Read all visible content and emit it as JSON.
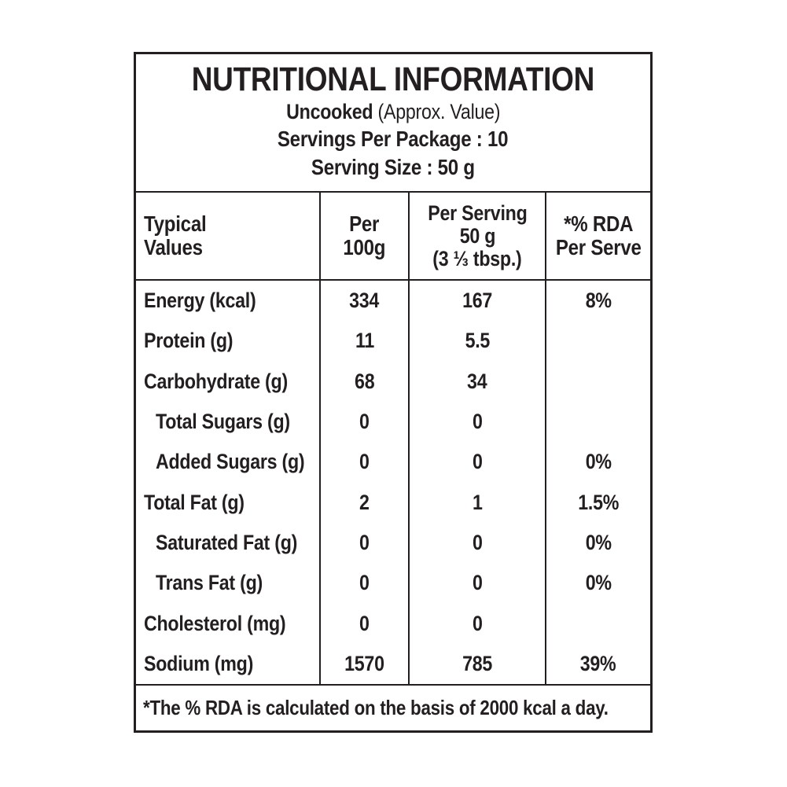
{
  "header": {
    "title": "NUTRITIONAL INFORMATION",
    "subtitle_bold": "Uncooked",
    "subtitle_rest": " (Approx. Value)",
    "servings_line": "Servings Per Package : 10",
    "serving_size_line": "Serving Size : 50 g"
  },
  "table": {
    "columns": {
      "typical_values": {
        "line1": "Typical",
        "line2": "Values"
      },
      "per_100g": {
        "line1": "Per",
        "line2": "100g"
      },
      "per_serving": {
        "line1": "Per Serving",
        "line2": "50 g",
        "line3": "(3 ⅓ tbsp.)"
      },
      "rda": {
        "line1": "*% RDA",
        "line2": "Per Serve"
      }
    },
    "rows": [
      {
        "label": "Energy (kcal)",
        "per100g": "334",
        "per_serving": "167",
        "rda": "8%"
      },
      {
        "label": "Protein (g)",
        "per100g": "11",
        "per_serving": "5.5",
        "rda": ""
      },
      {
        "label": "Carbohydrate (g)",
        "per100g": "68",
        "per_serving": "34",
        "rda": ""
      },
      {
        "label": "Total Sugars (g)",
        "per100g": "0",
        "per_serving": "0",
        "rda": ""
      },
      {
        "label": "Added Sugars (g)",
        "per100g": "0",
        "per_serving": "0",
        "rda": "0%"
      },
      {
        "label": "Total Fat (g)",
        "per100g": "2",
        "per_serving": "1",
        "rda": "1.5%"
      },
      {
        "label": "Saturated Fat (g)",
        "per100g": "0",
        "per_serving": "0",
        "rda": "0%"
      },
      {
        "label": "Trans Fat (g)",
        "per100g": "0",
        "per_serving": "0",
        "rda": "0%"
      },
      {
        "label": "Cholesterol (mg)",
        "per100g": "0",
        "per_serving": "0",
        "rda": ""
      },
      {
        "label": "Sodium (mg)",
        "per100g": "1570",
        "per_serving": "785",
        "rda": "39%"
      }
    ],
    "footnote": "*The % RDA is calculated on the basis of 2000 kcal a day."
  },
  "colors": {
    "text": "#231f20",
    "border": "#231f20",
    "background": "#ffffff"
  }
}
